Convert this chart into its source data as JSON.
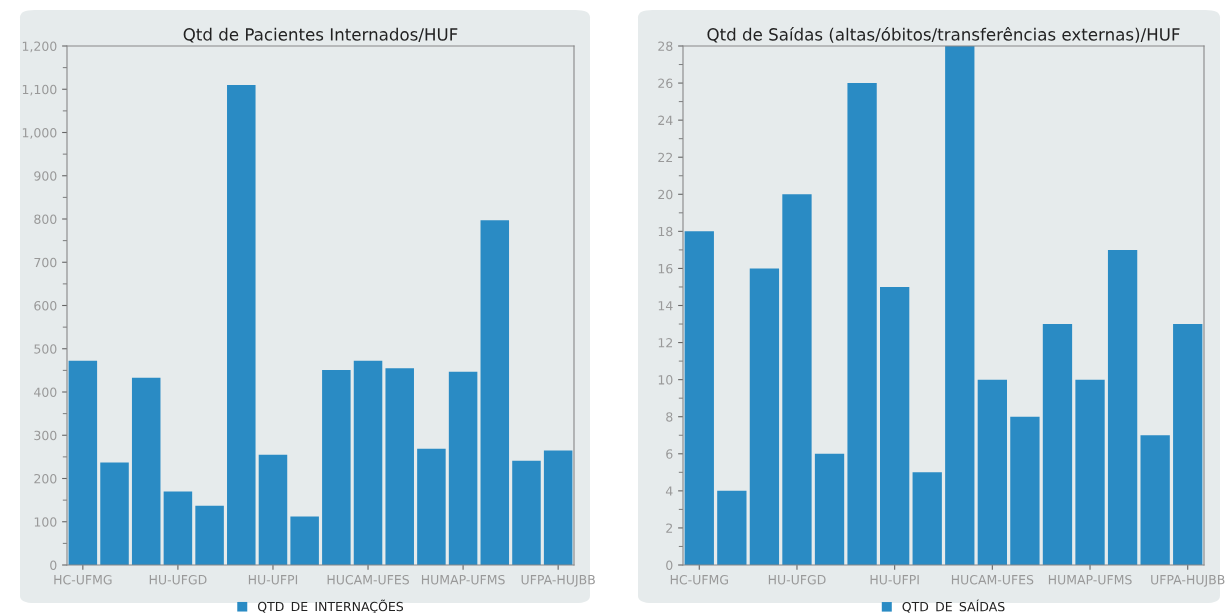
{
  "chart_data": [
    {
      "type": "bar",
      "title": "Qtd de Pacientes Internados/HUF",
      "categories": [
        "HC-UFMG",
        null,
        null,
        "HU-UFGD",
        null,
        null,
        "HU-UFPI",
        null,
        null,
        "HUCAM-UFES",
        null,
        null,
        "HUMAP-UFMS",
        null,
        null,
        "UFPA-HUJBB"
      ],
      "series": [
        {
          "name": "QTD_DE_INTERNAÇÕES",
          "color": "#2a8bc4",
          "values": [
            472,
            237,
            433,
            170,
            137,
            1110,
            255,
            112,
            451,
            472,
            455,
            269,
            447,
            797,
            241,
            265
          ]
        }
      ],
      "ylim": [
        0,
        1200
      ],
      "yticks": [
        0,
        100,
        200,
        300,
        400,
        500,
        600,
        700,
        800,
        900,
        {
          "value": 1000,
          "label": "1,000"
        },
        {
          "value": 1100,
          "label": "1,100"
        },
        {
          "value": 1200,
          "label": "1,200"
        }
      ],
      "grid": false,
      "legend": "bottom"
    },
    {
      "type": "bar",
      "title": "Qtd de Saídas (altas/óbitos/transferências externas)/HUF",
      "categories": [
        "HC-UFMG",
        null,
        null,
        "HU-UFGD",
        null,
        null,
        "HU-UFPI",
        null,
        null,
        "HUCAM-UFES",
        null,
        null,
        "HUMAP-UFMS",
        null,
        null,
        "UFPA-HUJBB"
      ],
      "series": [
        {
          "name": "QTD_DE_SAÍDAS",
          "color": "#2a8bc4",
          "values": [
            18,
            4,
            16,
            20,
            6,
            26,
            15,
            5,
            28,
            10,
            8,
            13,
            10,
            17,
            7,
            13
          ]
        }
      ],
      "ylim": [
        0,
        28
      ],
      "yticks": [
        0,
        2,
        4,
        6,
        8,
        10,
        12,
        14,
        16,
        18,
        20,
        22,
        24,
        26,
        28
      ],
      "grid": false,
      "legend": "bottom"
    }
  ]
}
